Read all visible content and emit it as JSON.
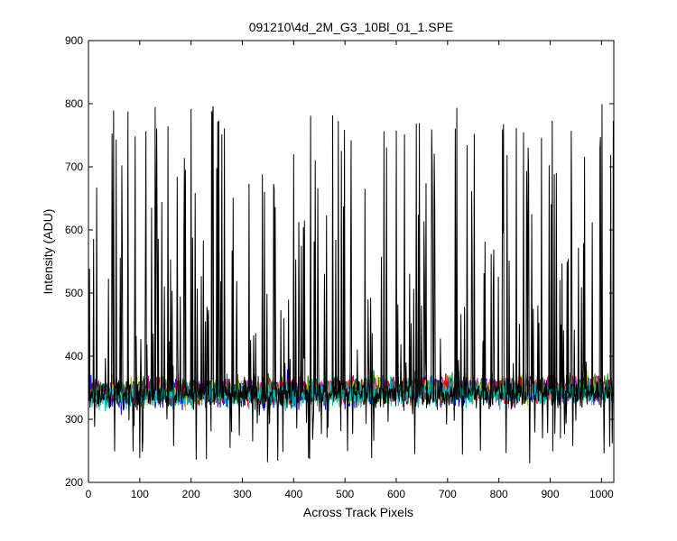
{
  "chart_data": {
    "type": "line",
    "title": "091210\\4d_2M_G3_10Bl_01_1.SPE",
    "xlabel": "Across Track Pixels",
    "ylabel": "Intensity (ADU)",
    "xlim": [
      0,
      1024
    ],
    "ylim": [
      200,
      900
    ],
    "xticks": [
      0,
      100,
      200,
      300,
      400,
      500,
      600,
      700,
      800,
      900,
      1000
    ],
    "yticks": [
      200,
      300,
      400,
      500,
      600,
      700,
      800,
      900
    ],
    "grid": false,
    "legend": "none",
    "n_points": 1024,
    "series": [
      {
        "color": "#000000",
        "mode": "spiky",
        "baseline": 340,
        "noise": 18,
        "spike_prob": 0.18,
        "spike_low": 380,
        "spike_high": 800,
        "dip_prob": 0.05,
        "dip_low": 230,
        "dip_high": 300
      },
      {
        "color": "#0000ff",
        "mode": "noise",
        "baseline": 340,
        "noise": 18,
        "trend": 6
      },
      {
        "color": "#008000",
        "mode": "noise",
        "baseline": 345,
        "noise": 18,
        "trend": 8
      },
      {
        "color": "#ff0000",
        "mode": "noise",
        "baseline": 343,
        "noise": 18,
        "trend": 6
      },
      {
        "color": "#bf00bf",
        "mode": "noise",
        "baseline": 345,
        "noise": 16,
        "trend": 6
      },
      {
        "color": "#bfbf00",
        "mode": "noise",
        "baseline": 342,
        "noise": 16,
        "trend": 6
      },
      {
        "color": "#404040",
        "mode": "noise",
        "baseline": 340,
        "noise": 16,
        "trend": 6
      },
      {
        "color": "#00bfbf",
        "mode": "noise",
        "baseline": 338,
        "noise": 18,
        "trend": 6
      }
    ]
  }
}
